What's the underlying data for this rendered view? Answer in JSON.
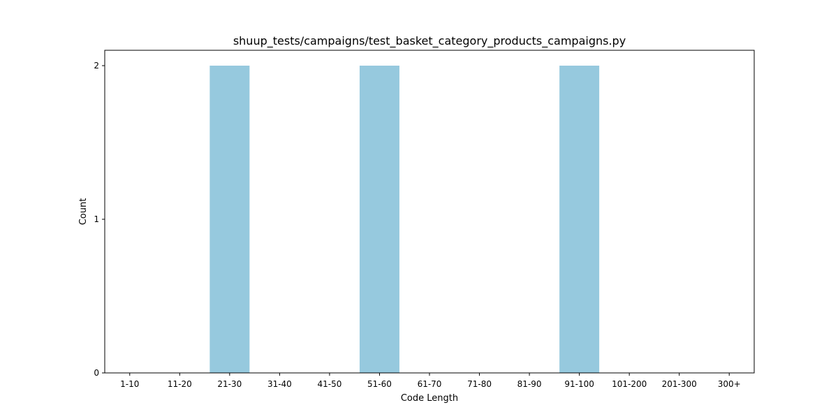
{
  "chart_data": {
    "type": "bar",
    "title": "shuup_tests/campaigns/test_basket_category_products_campaigns.py",
    "xlabel": "Code Length",
    "ylabel": "Count",
    "categories": [
      "1-10",
      "11-20",
      "21-30",
      "31-40",
      "41-50",
      "51-60",
      "61-70",
      "71-80",
      "81-90",
      "91-100",
      "101-200",
      "201-300",
      "300+"
    ],
    "values": [
      0,
      0,
      2,
      0,
      0,
      2,
      0,
      0,
      0,
      2,
      0,
      0,
      0
    ],
    "ylim": [
      0,
      2.1
    ],
    "yticks": [
      0,
      1,
      2
    ],
    "bar_color": "#96c9de",
    "grid": false,
    "legend": "none"
  }
}
